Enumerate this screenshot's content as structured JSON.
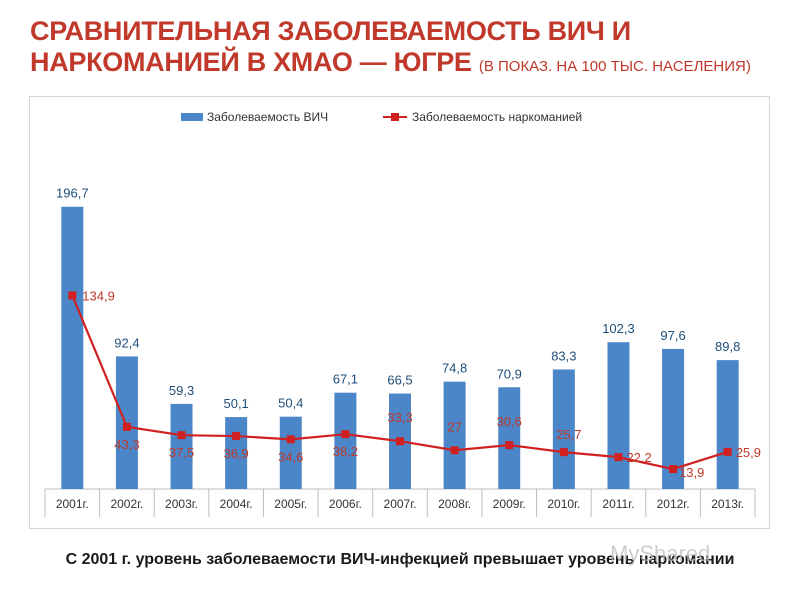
{
  "slide": {
    "title_main": "Сравнительная заболеваемость ВИЧ и наркоманией в ХМАО — Югре",
    "title_note": "(в показ. на 100 тыс. населения)",
    "caption": "С 2001 г. уровень заболеваемости ВИЧ-инфекцией превышает уровень наркомании",
    "watermark": "MyShared"
  },
  "chart_data": {
    "type": "bar",
    "title": "",
    "xlabel": "",
    "ylabel": "",
    "ylim": [
      0,
      220
    ],
    "grid": false,
    "legend_position": "top",
    "categories": [
      "2001г.",
      "2002г.",
      "2003г.",
      "2004г.",
      "2005г.",
      "2006г.",
      "2007г.",
      "2008г.",
      "2009г.",
      "2010г.",
      "2011г.",
      "2012г.",
      "2013г."
    ],
    "series": [
      {
        "name": "Заболеваемость ВИЧ",
        "type": "bar",
        "color": "#4a86c8",
        "label_color": "#1f4e79",
        "values": [
          196.7,
          92.4,
          59.3,
          50.1,
          50.4,
          67.1,
          66.5,
          74.8,
          70.9,
          83.3,
          102.3,
          97.6,
          89.8
        ],
        "labels": [
          "196,7",
          "92,4",
          "59,3",
          "50,1",
          "50,4",
          "67,1",
          "66,5",
          "74,8",
          "70,9",
          "83,3",
          "102,3",
          "97,6",
          "89,8"
        ]
      },
      {
        "name": "Заболеваемость наркоманией",
        "type": "line",
        "color": "#d02020",
        "label_color": "#c0392b",
        "values": [
          134.9,
          43.3,
          37.5,
          36.9,
          34.6,
          38.2,
          33.3,
          27,
          30.6,
          25.7,
          22.2,
          13.9,
          25.9
        ],
        "labels": [
          "134,9",
          "43,3",
          "37,5",
          "36,9",
          "34,6",
          "38,2",
          "33,3",
          "27",
          "30,6",
          "25,7",
          "22,2",
          "13,9",
          "25,9"
        ]
      }
    ]
  }
}
